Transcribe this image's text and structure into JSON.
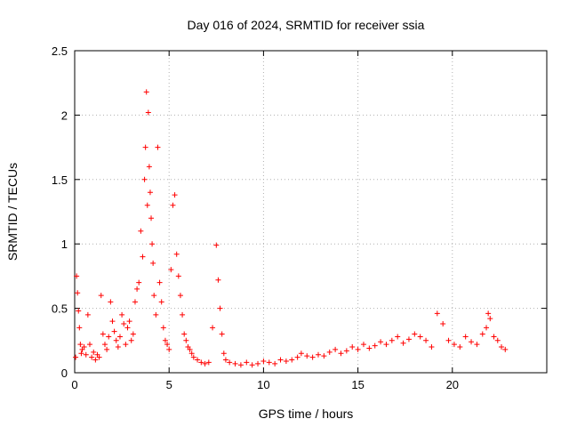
{
  "chart_data": {
    "type": "scatter",
    "title": "Day 016 of 2024, SRMTID for receiver ssia",
    "xlabel": "GPS time / hours",
    "ylabel": "SRMTID / TECUs",
    "xlim": [
      0,
      25
    ],
    "ylim": [
      0,
      2.5
    ],
    "x_ticks": [
      0,
      5,
      10,
      15,
      20
    ],
    "x_tick_labels": [
      "0",
      "5",
      "10",
      "15",
      "20"
    ],
    "y_ticks": [
      0,
      0.5,
      1,
      1.5,
      2,
      2.5
    ],
    "y_tick_labels": [
      "0",
      "0.5",
      "1",
      "1.5",
      "2",
      "2.5"
    ],
    "grid": true,
    "marker": "+",
    "color": "#ff0000",
    "series": [
      {
        "name": "SRMTID",
        "x": [
          0.05,
          0.1,
          0.15,
          0.2,
          0.25,
          0.3,
          0.35,
          0.4,
          0.5,
          0.6,
          0.7,
          0.8,
          0.9,
          1.0,
          1.1,
          1.2,
          1.3,
          1.4,
          1.5,
          1.6,
          1.7,
          1.8,
          1.9,
          2.0,
          2.1,
          2.2,
          2.3,
          2.4,
          2.5,
          2.6,
          2.7,
          2.8,
          2.9,
          3.0,
          3.1,
          3.2,
          3.3,
          3.4,
          3.5,
          3.6,
          3.7,
          3.75,
          3.8,
          3.85,
          3.9,
          3.95,
          4.0,
          4.05,
          4.1,
          4.15,
          4.2,
          4.3,
          4.4,
          4.5,
          4.6,
          4.7,
          4.8,
          4.9,
          5.0,
          5.1,
          5.2,
          5.3,
          5.4,
          5.5,
          5.6,
          5.7,
          5.8,
          5.9,
          6.0,
          6.1,
          6.2,
          6.3,
          6.5,
          6.7,
          6.9,
          7.1,
          7.3,
          7.5,
          7.6,
          7.7,
          7.8,
          7.9,
          8.0,
          8.2,
          8.5,
          8.8,
          9.1,
          9.4,
          9.7,
          10.0,
          10.3,
          10.6,
          10.9,
          11.2,
          11.5,
          11.8,
          12.0,
          12.3,
          12.6,
          12.9,
          13.2,
          13.5,
          13.8,
          14.1,
          14.4,
          14.7,
          15.0,
          15.3,
          15.6,
          15.9,
          16.2,
          16.5,
          16.8,
          17.1,
          17.4,
          17.7,
          18.0,
          18.3,
          18.6,
          18.9,
          19.2,
          19.5,
          19.8,
          20.1,
          20.4,
          20.7,
          21.0,
          21.3,
          21.6,
          21.8,
          21.9,
          22.0,
          22.2,
          22.4,
          22.6,
          22.8
        ],
        "y": [
          0.12,
          0.75,
          0.62,
          0.48,
          0.35,
          0.22,
          0.15,
          0.18,
          0.2,
          0.14,
          0.45,
          0.22,
          0.12,
          0.16,
          0.1,
          0.14,
          0.12,
          0.6,
          0.3,
          0.22,
          0.18,
          0.28,
          0.55,
          0.4,
          0.32,
          0.25,
          0.2,
          0.28,
          0.45,
          0.38,
          0.22,
          0.35,
          0.4,
          0.25,
          0.3,
          0.55,
          0.65,
          0.7,
          1.1,
          0.9,
          1.5,
          1.75,
          2.18,
          1.3,
          2.02,
          1.6,
          1.4,
          1.2,
          1.0,
          0.85,
          0.6,
          0.45,
          1.75,
          0.7,
          0.55,
          0.35,
          0.25,
          0.22,
          0.18,
          0.8,
          1.3,
          1.38,
          0.92,
          0.75,
          0.6,
          0.45,
          0.3,
          0.25,
          0.2,
          0.18,
          0.15,
          0.12,
          0.1,
          0.08,
          0.07,
          0.08,
          0.35,
          0.99,
          0.72,
          0.5,
          0.3,
          0.15,
          0.1,
          0.08,
          0.07,
          0.06,
          0.08,
          0.06,
          0.07,
          0.09,
          0.08,
          0.07,
          0.1,
          0.09,
          0.1,
          0.12,
          0.15,
          0.13,
          0.12,
          0.14,
          0.13,
          0.16,
          0.18,
          0.15,
          0.17,
          0.2,
          0.18,
          0.22,
          0.19,
          0.21,
          0.24,
          0.22,
          0.25,
          0.28,
          0.23,
          0.26,
          0.3,
          0.28,
          0.25,
          0.2,
          0.46,
          0.38,
          0.25,
          0.22,
          0.2,
          0.28,
          0.24,
          0.22,
          0.3,
          0.35,
          0.46,
          0.42,
          0.28,
          0.25,
          0.2,
          0.18
        ]
      }
    ]
  }
}
